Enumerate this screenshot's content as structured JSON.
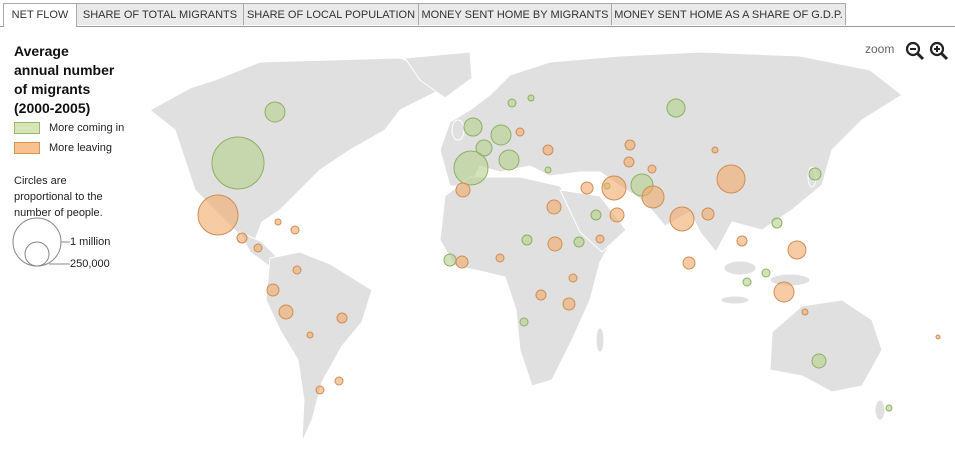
{
  "tabs": [
    "NET FLOW",
    "SHARE OF TOTAL MIGRANTS",
    "SHARE OF LOCAL POPULATION",
    "MONEY SENT HOME BY MIGRANTS",
    "MONEY SENT HOME AS A SHARE OF G.D.P."
  ],
  "legend": {
    "title_lines": [
      "Average",
      "annual number",
      "of migrants",
      "(2000-2005)"
    ],
    "items": [
      "More coming in",
      "More leaving"
    ],
    "note_lines": [
      "Circles are",
      "proportional to the",
      "number of people."
    ],
    "sizes": [
      "1 million",
      "250,000"
    ]
  },
  "zoom_label": "zoom"
}
